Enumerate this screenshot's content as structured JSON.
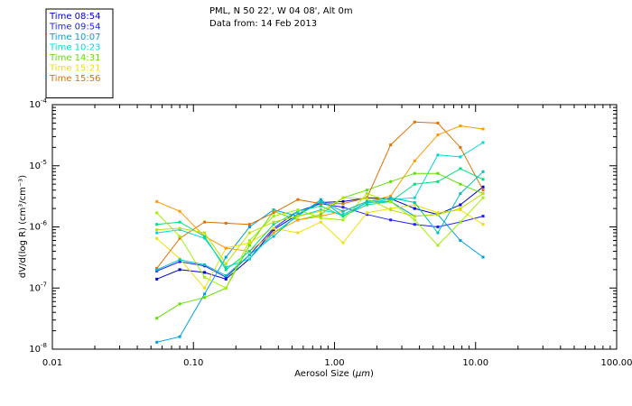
{
  "header": {
    "line1": "PML, N 50 22', W 04 08', Alt 0m",
    "line2": "Data from: 14 Feb 2013"
  },
  "chart_data": {
    "type": "line",
    "title": "",
    "xlabel_prefix": "Aerosol Size (",
    "xlabel_unit": "μm",
    "xlabel_suffix": ")",
    "ylabel": "dV/d(log R) (cm³/cm⁻³)",
    "x_scale": "log",
    "y_scale": "log",
    "xlim": [
      0.01,
      100
    ],
    "ylim": [
      1e-08,
      0.0001
    ],
    "x_ticks": [
      {
        "value": 0.01,
        "label": "0.01"
      },
      {
        "value": 0.1,
        "label": "0.10"
      },
      {
        "value": 1,
        "label": "1.00"
      },
      {
        "value": 10,
        "label": "10.00"
      },
      {
        "value": 100,
        "label": "100.00"
      }
    ],
    "y_ticks": [
      {
        "value": 1e-08,
        "base": "10",
        "exp": "-8"
      },
      {
        "value": 1e-07,
        "base": "10",
        "exp": "-7"
      },
      {
        "value": 1e-06,
        "base": "10",
        "exp": "-6"
      },
      {
        "value": 1e-05,
        "base": "10",
        "exp": "-5"
      },
      {
        "value": 0.0001,
        "base": "10",
        "exp": "-4"
      }
    ],
    "grid": false,
    "legend_position": "top-left",
    "x": [
      0.055,
      0.08,
      0.12,
      0.17,
      0.25,
      0.37,
      0.55,
      0.8,
      1.15,
      1.7,
      2.5,
      3.7,
      5.4,
      7.8,
      11.3
    ],
    "series": [
      {
        "name": "Time 08:54",
        "color": "#0000cc",
        "values": [
          1.4e-07,
          2e-07,
          1.8e-07,
          1.4e-07,
          3e-07,
          9e-07,
          1.6e-06,
          2.5e-06,
          2.6e-06,
          3e-06,
          2.9e-06,
          2e-06,
          1.6e-06,
          2.3e-06,
          4.5e-06
        ]
      },
      {
        "name": "Time 09:54",
        "color": "#2020ff",
        "values": [
          1.9e-07,
          2.7e-07,
          2.3e-07,
          1.5e-07,
          3.5e-07,
          9.5e-07,
          1.8e-06,
          2.4e-06,
          2.1e-06,
          1.6e-06,
          1.3e-06,
          1.1e-06,
          1e-06,
          1.2e-06,
          1.5e-06
        ]
      },
      {
        "name": "Time 10:07",
        "color": "#00a0e0",
        "values": [
          1.3e-08,
          1.6e-08,
          8e-08,
          3.2e-07,
          1e-06,
          1.9e-06,
          1.5e-06,
          2.8e-06,
          1.5e-06,
          2.5e-06,
          2.6e-06,
          1.5e-06,
          1.6e-06,
          6e-07,
          3.2e-07
        ]
      },
      {
        "name": "Time 10:23",
        "color": "#00d8d8",
        "values": [
          8e-07,
          9e-07,
          6.5e-07,
          2.2e-07,
          3e-07,
          8e-07,
          1.5e-06,
          1.9e-06,
          1.6e-06,
          2.5e-06,
          2.8e-06,
          3e-06,
          1.5e-05,
          1.4e-05,
          2.4e-05
        ]
      },
      {
        "name": "Time 14:31",
        "color": "#60e000",
        "values": [
          3.2e-08,
          5.5e-08,
          7e-08,
          1e-07,
          5e-07,
          1.8e-06,
          1.3e-06,
          1.6e-06,
          3e-06,
          4e-06,
          5.5e-06,
          7.5e-06,
          7.5e-06,
          5e-06,
          3.5e-06
        ]
      },
      {
        "name": "Time 15:21",
        "color": "#f0e000",
        "values": [
          6.5e-07,
          3e-07,
          1e-07,
          4.5e-07,
          5.5e-07,
          9.5e-07,
          8e-07,
          1.2e-06,
          5.5e-07,
          1.7e-06,
          2e-06,
          2.3e-06,
          1.7e-06,
          1.9e-06,
          1.1e-06
        ]
      },
      {
        "name": "Time 15:56",
        "color": "#e07000",
        "values": [
          2.1e-07,
          6.5e-07,
          1.2e-06,
          1.15e-06,
          1.1e-06,
          1.7e-06,
          2.8e-06,
          2.4e-06,
          2.4e-06,
          3e-06,
          2.2e-05,
          5.2e-05,
          5e-05,
          2e-05,
          4e-06
        ]
      },
      {
        "name": "",
        "color": "#ff9900",
        "values": [
          2.6e-06,
          1.8e-06,
          7e-07,
          4.5e-07,
          4e-07,
          8e-07,
          1.3e-06,
          1.5e-06,
          1.8e-06,
          2.6e-06,
          3.2e-06,
          1.2e-05,
          3.2e-05,
          4.5e-05,
          4e-05
        ]
      },
      {
        "name": "",
        "color": "#00e080",
        "values": [
          1.1e-06,
          1.2e-06,
          7e-07,
          2e-07,
          4e-07,
          1.1e-06,
          1.8e-06,
          2.2e-06,
          1.5e-06,
          2.3e-06,
          2.6e-06,
          5e-06,
          5.5e-06,
          9e-06,
          6e-06
        ]
      },
      {
        "name": "",
        "color": "#a0f000",
        "values": [
          1.7e-06,
          7e-07,
          1.5e-07,
          1e-07,
          6e-07,
          1.5e-06,
          1.9e-06,
          1.4e-06,
          1.3e-06,
          3.5e-06,
          2.6e-06,
          1.3e-06,
          5e-07,
          1.2e-06,
          3e-06
        ]
      },
      {
        "name": "",
        "color": "#00c0c0",
        "values": [
          2e-07,
          2.9e-07,
          2.4e-07,
          1.6e-07,
          3.5e-07,
          7e-07,
          1.6e-06,
          2.6e-06,
          1.8e-06,
          2.6e-06,
          3e-06,
          2.5e-06,
          8e-07,
          3.5e-06,
          8e-06
        ]
      },
      {
        "name": "",
        "color": "#c0e000",
        "values": [
          9e-07,
          9.5e-07,
          8e-07,
          2.5e-07,
          8e-07,
          1.2e-06,
          1.5e-06,
          1.8e-06,
          3e-06,
          2.9e-06,
          1.9e-06,
          1.5e-06,
          1.6e-06,
          2e-06,
          3.5e-06
        ]
      }
    ]
  }
}
